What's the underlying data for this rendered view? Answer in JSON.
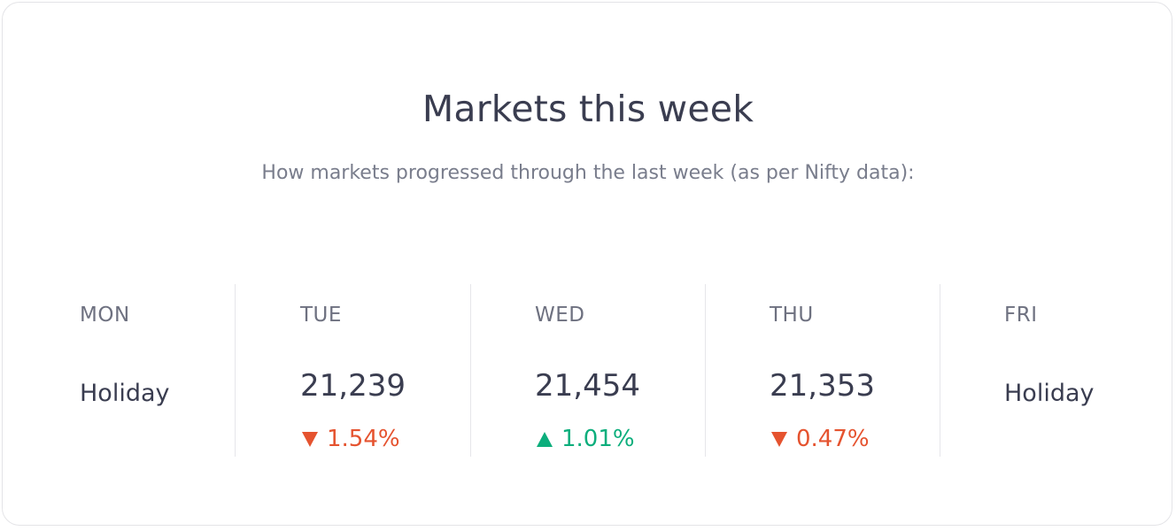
{
  "header": {
    "title": "Markets this week",
    "subtitle": "How markets progressed through the last week (as per Nifty data):"
  },
  "colors": {
    "down": "#e5532f",
    "up": "#0cae7c",
    "text": "#3a3d50",
    "muted": "#797d8c"
  },
  "days": [
    {
      "label": "MON",
      "holiday": "Holiday"
    },
    {
      "label": "TUE",
      "value": "21,239",
      "change": "1.54%",
      "direction": "down",
      "icon": "triangle-down-icon"
    },
    {
      "label": "WED",
      "value": "21,454",
      "change": "1.01%",
      "direction": "up",
      "icon": "triangle-up-icon"
    },
    {
      "label": "THU",
      "value": "21,353",
      "change": "0.47%",
      "direction": "down",
      "icon": "triangle-down-icon"
    },
    {
      "label": "FRI",
      "holiday": "Holiday"
    }
  ]
}
